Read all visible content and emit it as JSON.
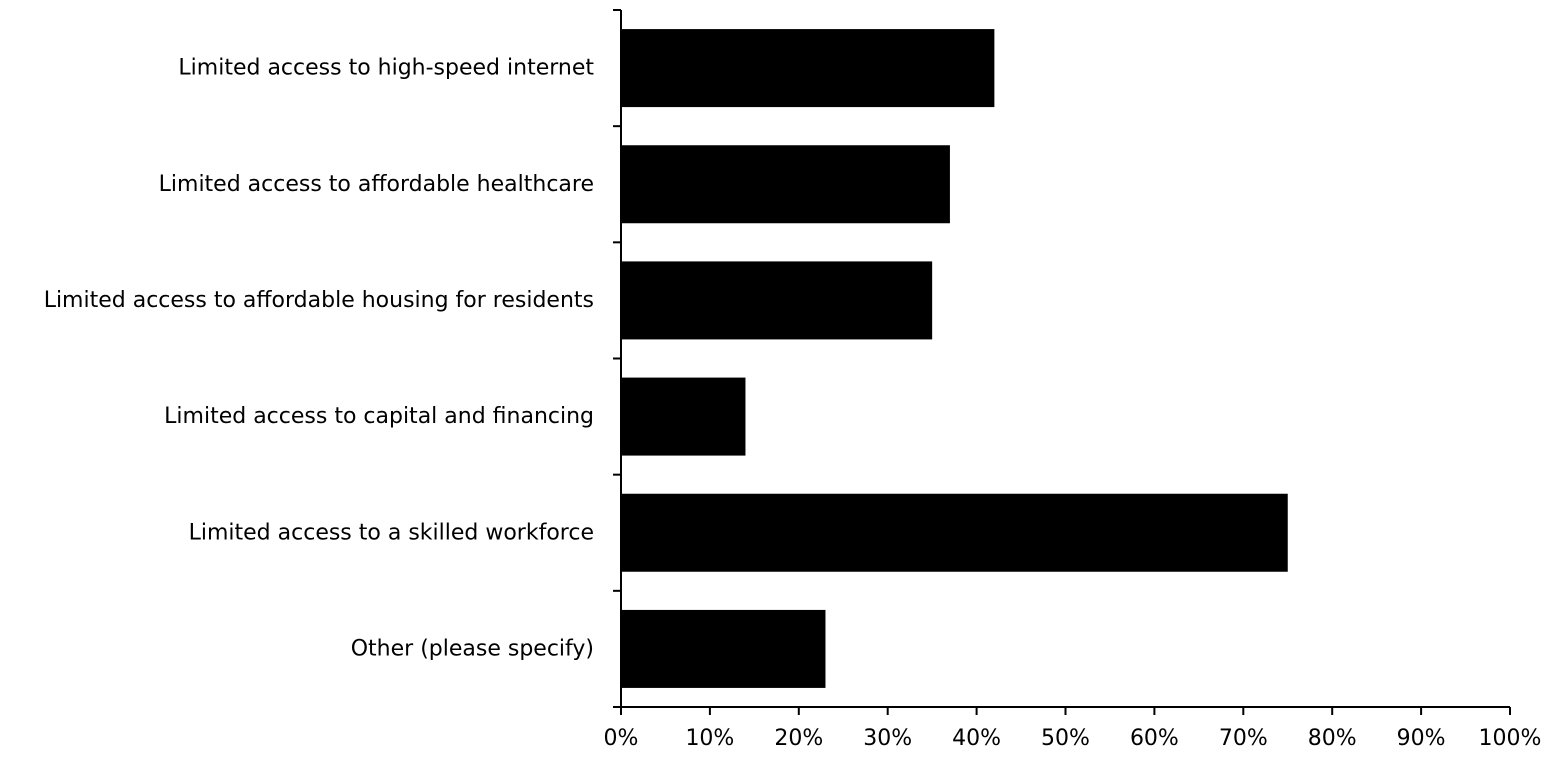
{
  "chart_data": {
    "type": "bar",
    "orientation": "horizontal",
    "categories": [
      "Limited access to high-speed internet",
      "Limited access to affordable healthcare",
      "Limited access to affordable housing for residents",
      "Limited access to capital and financing",
      "Limited access to a skilled workforce",
      "Other (please specify)"
    ],
    "values": [
      42,
      37,
      35,
      14,
      75,
      23
    ],
    "value_unit": "%",
    "xlim": [
      0,
      100
    ],
    "x_ticks": [
      "0%",
      "10%",
      "20%",
      "30%",
      "40%",
      "50%",
      "60%",
      "70%",
      "80%",
      "90%",
      "100%"
    ],
    "grid": false,
    "bar_color": "#000000",
    "axis_color": "#000000"
  }
}
